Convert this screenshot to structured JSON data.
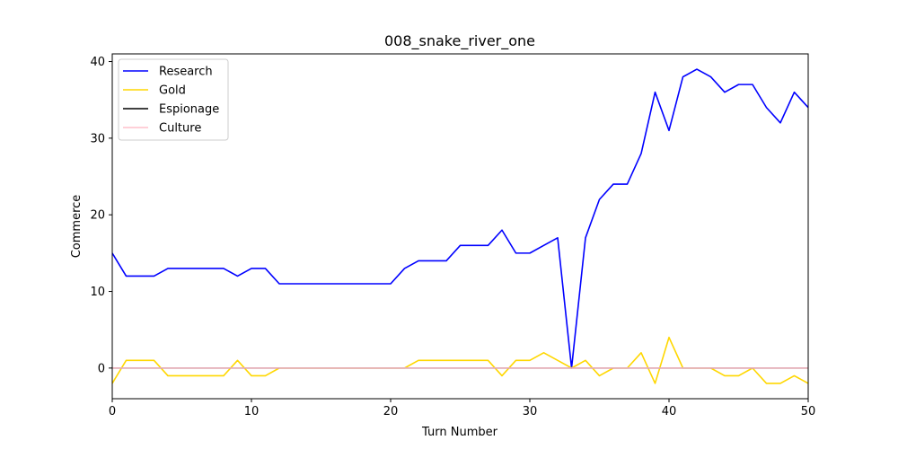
{
  "chart_data": {
    "type": "line",
    "title": "008_snake_river_one",
    "xlabel": "Turn Number",
    "ylabel": "Commerce",
    "xlim": [
      0,
      50
    ],
    "ylim": [
      -4,
      41
    ],
    "xticks": [
      0,
      10,
      20,
      30,
      40,
      50
    ],
    "yticks": [
      0,
      10,
      20,
      30,
      40
    ],
    "legend_position": "upper-left",
    "grid": false,
    "x": [
      0,
      1,
      2,
      3,
      4,
      5,
      6,
      7,
      8,
      9,
      10,
      11,
      12,
      13,
      14,
      15,
      16,
      17,
      18,
      19,
      20,
      21,
      22,
      23,
      24,
      25,
      26,
      27,
      28,
      29,
      30,
      31,
      32,
      33,
      34,
      35,
      36,
      37,
      38,
      39,
      40,
      41,
      42,
      43,
      44,
      45,
      46,
      47,
      48,
      49,
      50
    ],
    "series": [
      {
        "name": "Research",
        "color": "#0000ff",
        "values": [
          15,
          12,
          12,
          12,
          13,
          13,
          13,
          13,
          13,
          12,
          13,
          13,
          11,
          11,
          11,
          11,
          11,
          11,
          11,
          11,
          11,
          13,
          14,
          14,
          14,
          16,
          16,
          16,
          18,
          15,
          15,
          16,
          17,
          0,
          17,
          22,
          24,
          24,
          28,
          36,
          31,
          38,
          39,
          38,
          36,
          37,
          37,
          34,
          32,
          36,
          34
        ]
      },
      {
        "name": "Gold",
        "color": "#ffd700",
        "values": [
          -2,
          1,
          1,
          1,
          -1,
          -1,
          -1,
          -1,
          -1,
          1,
          -1,
          -1,
          0,
          0,
          0,
          0,
          0,
          0,
          0,
          0,
          0,
          0,
          1,
          1,
          1,
          1,
          1,
          1,
          -1,
          1,
          1,
          2,
          1,
          0,
          1,
          -1,
          0,
          0,
          2,
          -2,
          4,
          0,
          0,
          0,
          -1,
          -1,
          0,
          -2,
          -2,
          -1,
          -2
        ]
      },
      {
        "name": "Espionage",
        "color": "#000000",
        "values": [
          0,
          0,
          0,
          0,
          0,
          0,
          0,
          0,
          0,
          0,
          0,
          0,
          0,
          0,
          0,
          0,
          0,
          0,
          0,
          0,
          0,
          0,
          0,
          0,
          0,
          0,
          0,
          0,
          0,
          0,
          0,
          0,
          0,
          0,
          0,
          0,
          0,
          0,
          0,
          0,
          0,
          0,
          0,
          0,
          0,
          0,
          0,
          0,
          0,
          0,
          0
        ]
      },
      {
        "name": "Culture",
        "color": "#ffc0cb",
        "values": [
          0,
          0,
          0,
          0,
          0,
          0,
          0,
          0,
          0,
          0,
          0,
          0,
          0,
          0,
          0,
          0,
          0,
          0,
          0,
          0,
          0,
          0,
          0,
          0,
          0,
          0,
          0,
          0,
          0,
          0,
          0,
          0,
          0,
          0,
          0,
          0,
          0,
          0,
          0,
          0,
          0,
          0,
          0,
          0,
          0,
          0,
          0,
          0,
          0,
          0,
          0
        ]
      }
    ]
  }
}
